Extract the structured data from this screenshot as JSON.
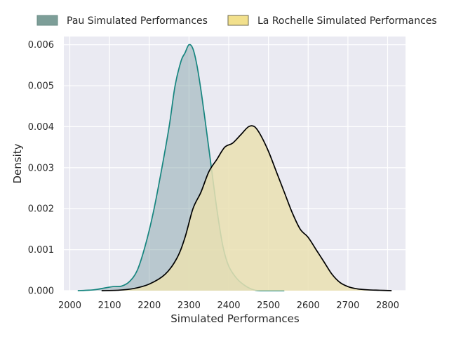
{
  "chart_data": {
    "type": "area",
    "xlabel": "Simulated Performances",
    "ylabel": "Density",
    "xlim": [
      1985,
      2845
    ],
    "ylim": [
      0,
      0.0062
    ],
    "xticks": [
      2000,
      2100,
      2200,
      2300,
      2400,
      2500,
      2600,
      2700,
      2800
    ],
    "xtick_labels": [
      "2000",
      "2100",
      "2200",
      "2300",
      "2400",
      "2500",
      "2600",
      "2700",
      "2800"
    ],
    "yticks": [
      0,
      0.001,
      0.002,
      0.003,
      0.004,
      0.005,
      0.006
    ],
    "ytick_labels": [
      "0.000",
      "0.001",
      "0.002",
      "0.003",
      "0.004",
      "0.005",
      "0.006"
    ],
    "grid": true,
    "legend": {
      "position": "top",
      "columns": 2
    },
    "series": [
      {
        "name": "Pau Simulated Performances",
        "fill_color": "#7f9fa5",
        "line_color": "#16857f",
        "fill_opacity": 0.45,
        "legend_fill": "#7d9e98",
        "points": [
          [
            2020,
            0
          ],
          [
            2060,
            2e-05
          ],
          [
            2090,
            7e-05
          ],
          [
            2110,
            0.0001
          ],
          [
            2130,
            0.00011
          ],
          [
            2150,
            0.00022
          ],
          [
            2170,
            0.0005
          ],
          [
            2190,
            0.0011
          ],
          [
            2210,
            0.0019
          ],
          [
            2230,
            0.0029
          ],
          [
            2250,
            0.004
          ],
          [
            2265,
            0.005
          ],
          [
            2280,
            0.0056
          ],
          [
            2290,
            0.0058
          ],
          [
            2300,
            0.006
          ],
          [
            2310,
            0.0059
          ],
          [
            2320,
            0.0055
          ],
          [
            2330,
            0.0049
          ],
          [
            2340,
            0.0042
          ],
          [
            2355,
            0.0031
          ],
          [
            2370,
            0.002
          ],
          [
            2385,
            0.0011
          ],
          [
            2400,
            0.0006
          ],
          [
            2420,
            0.0003
          ],
          [
            2440,
            0.00013
          ],
          [
            2460,
            3e-05
          ],
          [
            2480,
            0
          ],
          [
            2540,
            0
          ]
        ]
      },
      {
        "name": "La Rochelle Simulated Performances",
        "fill_color": "#eae0b1",
        "line_color": "#000000",
        "fill_opacity": 0.85,
        "legend_fill": "#f2e08c",
        "points": [
          [
            2080,
            0
          ],
          [
            2120,
            1e-05
          ],
          [
            2160,
            5e-05
          ],
          [
            2200,
            0.00016
          ],
          [
            2240,
            0.0004
          ],
          [
            2270,
            0.0008
          ],
          [
            2290,
            0.0013
          ],
          [
            2310,
            0.002
          ],
          [
            2330,
            0.0024
          ],
          [
            2350,
            0.0029
          ],
          [
            2370,
            0.0032
          ],
          [
            2390,
            0.0035
          ],
          [
            2410,
            0.0036
          ],
          [
            2430,
            0.0038
          ],
          [
            2450,
            0.004
          ],
          [
            2465,
            0.004
          ],
          [
            2480,
            0.0038
          ],
          [
            2500,
            0.0034
          ],
          [
            2520,
            0.0029
          ],
          [
            2540,
            0.0024
          ],
          [
            2560,
            0.0019
          ],
          [
            2580,
            0.0015
          ],
          [
            2600,
            0.0013
          ],
          [
            2620,
            0.001
          ],
          [
            2640,
            0.0007
          ],
          [
            2660,
            0.0004
          ],
          [
            2680,
            0.0002
          ],
          [
            2700,
            0.0001
          ],
          [
            2720,
            5e-05
          ],
          [
            2750,
            2e-05
          ],
          [
            2780,
            1e-05
          ],
          [
            2810,
            0
          ]
        ]
      }
    ]
  }
}
